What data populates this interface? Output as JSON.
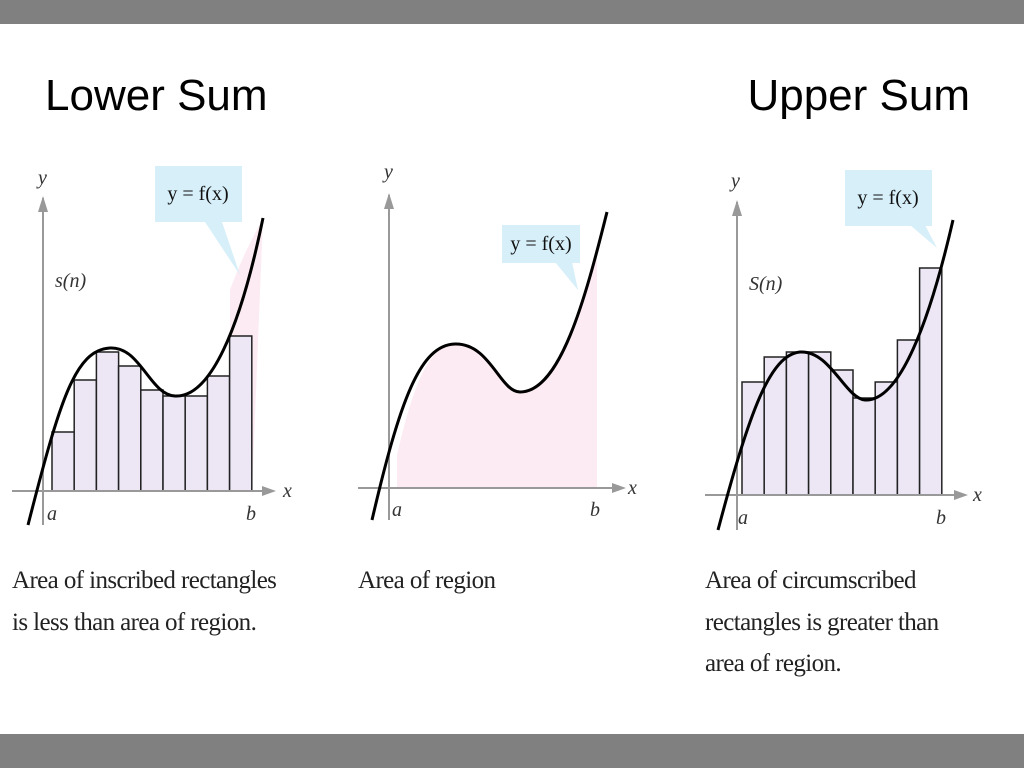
{
  "header": {
    "left_title": "Lower Sum",
    "right_title": "Upper Sum"
  },
  "panels": [
    {
      "y_label": "y",
      "x_label": "x",
      "a_label": "a",
      "b_label": "b",
      "function_label": "y = f(x)",
      "sum_label": "s(n)",
      "caption": [
        "Area of  inscribed rectangles",
        "is less than area of  region."
      ]
    },
    {
      "y_label": "y",
      "x_label": "x",
      "a_label": "a",
      "b_label": "b",
      "function_label": "y = f(x)",
      "caption": [
        "Area of  region"
      ]
    },
    {
      "y_label": "y",
      "x_label": "x",
      "a_label": "a",
      "b_label": "b",
      "function_label": "y = f(x)",
      "sum_label": "S(n)",
      "caption": [
        "Area of  circumscribed",
        "rectangles is greater than",
        "area of  region."
      ]
    }
  ]
}
